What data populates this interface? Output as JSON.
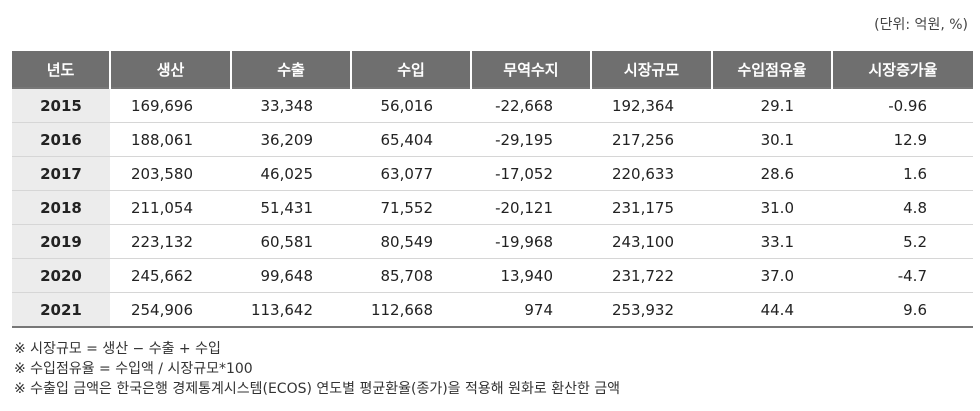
{
  "unit_label": "(단위: 억원, %)",
  "table": {
    "headers": [
      "년도",
      "생산",
      "수출",
      "수입",
      "무역수지",
      "시장규모",
      "수입점유율",
      "시장증가율"
    ],
    "rows": [
      [
        "2015",
        "169,696",
        "33,348",
        "56,016",
        "-22,668",
        "192,364",
        "29.1",
        "-0.96"
      ],
      [
        "2016",
        "188,061",
        "36,209",
        "65,404",
        "-29,195",
        "217,256",
        "30.1",
        "12.9"
      ],
      [
        "2017",
        "203,580",
        "46,025",
        "63,077",
        "-17,052",
        "220,633",
        "28.6",
        "1.6"
      ],
      [
        "2018",
        "211,054",
        "51,431",
        "71,552",
        "-20,121",
        "231,175",
        "31.0",
        "4.8"
      ],
      [
        "2019",
        "223,132",
        "60,581",
        "80,549",
        "-19,968",
        "243,100",
        "33.1",
        "5.2"
      ],
      [
        "2020",
        "245,662",
        "99,648",
        "85,708",
        "13,940",
        "231,722",
        "37.0",
        "-4.7"
      ],
      [
        "2021",
        "254,906",
        "113,642",
        "112,668",
        "974",
        "253,932",
        "44.4",
        "9.6"
      ]
    ]
  },
  "notes": [
    "※ 시장규모 = 생산 − 수출 + 수입",
    "※ 수입점유율 = 수입액 / 시장규모*100",
    "※ 수출입 금액은 한국은행 경제통계시스템(ECOS) 연도별 평균환율(종가)을 적용해 원화로 환산한 금액"
  ]
}
